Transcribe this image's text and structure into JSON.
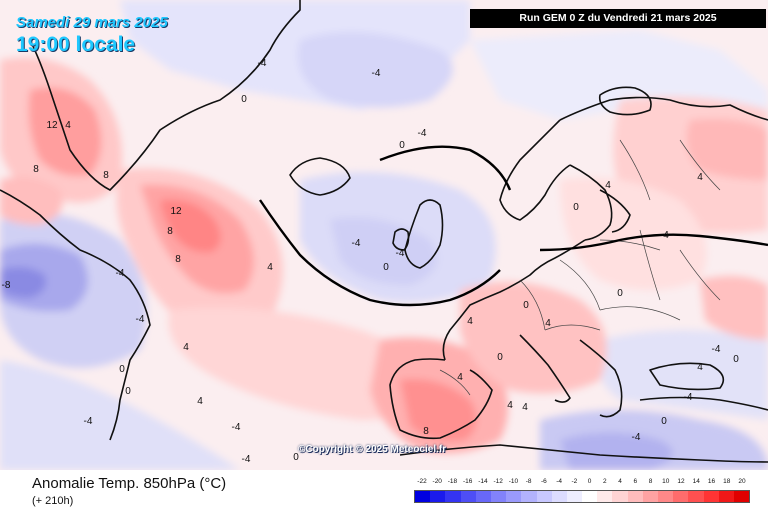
{
  "header": {
    "date": "Samedi 29 mars 2025",
    "time": "19:00 locale",
    "run": "Run GEM 0 Z du Vendredi 21 mars 2025"
  },
  "copyright": "©Copyright © 2025 Meteociel.fr",
  "footer": {
    "title": "Anomalie Temp. 850hPa (°C)",
    "lead_time": "(+ 210h)"
  },
  "legend": {
    "labels": [
      "-22",
      "-20",
      "-18",
      "-16",
      "-14",
      "-12",
      "-10",
      "-8",
      "-6",
      "-4",
      "-2",
      "0",
      "2",
      "4",
      "6",
      "8",
      "10",
      "12",
      "14",
      "16",
      "18",
      "20"
    ],
    "colors": [
      "#0000e0",
      "#1a1aec",
      "#3434f2",
      "#4e4ef5",
      "#6868f8",
      "#8282fa",
      "#9a9afb",
      "#b2b2fd",
      "#c8c8ff",
      "#dcdcff",
      "#eeeeff",
      "#ffffff",
      "#ffeaea",
      "#ffd4d4",
      "#ffbcbc",
      "#ffa2a2",
      "#ff8888",
      "#ff6c6c",
      "#ff5050",
      "#ff3434",
      "#f01818",
      "#e00000"
    ]
  },
  "chart_data": {
    "type": "map",
    "field": "Anomalie Temp. 850hPa (°C)",
    "contour_interval": 4,
    "contour_labels": [
      {
        "region": "south Greenland",
        "value": 12
      },
      {
        "region": "south Greenland",
        "value": 4
      },
      {
        "region": "south Greenland",
        "value": 8
      },
      {
        "region": "Labrador coast",
        "value": 8
      },
      {
        "region": "Irminger Sea",
        "value": 8
      },
      {
        "region": "central North Atlantic",
        "value": 12
      },
      {
        "region": "central North Atlantic",
        "value": 8
      },
      {
        "region": "central North Atlantic",
        "value": 4
      },
      {
        "region": "Labrador",
        "value": -4
      },
      {
        "region": "Labrador",
        "value": -8
      },
      {
        "region": "Newfoundland",
        "value": -4
      },
      {
        "region": "western Atlantic",
        "value": 4
      },
      {
        "region": "western Atlantic",
        "value": 0
      },
      {
        "region": "western Atlantic",
        "value": -4
      },
      {
        "region": "Greenland east coast",
        "value": -4
      },
      {
        "region": "Greenland east coast",
        "value": 0
      },
      {
        "region": "Greenland Sea",
        "value": -4
      },
      {
        "region": "Norwegian Sea",
        "value": 0
      },
      {
        "region": "Svalbard area",
        "value": -4
      },
      {
        "region": "British Isles",
        "value": -4
      },
      {
        "region": "British Isles",
        "value": 0
      },
      {
        "region": "North Sea",
        "value": -4
      },
      {
        "region": "Scandinavia",
        "value": 0
      },
      {
        "region": "Scandinavia",
        "value": 4
      },
      {
        "region": "Baltic",
        "value": 4
      },
      {
        "region": "Western Russia",
        "value": 4
      },
      {
        "region": "Eastern Europe",
        "value": 0
      },
      {
        "region": "Balkans",
        "value": 4
      },
      {
        "region": "Aegean",
        "value": -4
      },
      {
        "region": "Iberia",
        "value": 4
      },
      {
        "region": "Iberia",
        "value": 8
      },
      {
        "region": "North Africa",
        "value": 4
      },
      {
        "region": "Central Mediterranean",
        "value": 0
      },
      {
        "region": "Central Mediterranean",
        "value": 4
      },
      {
        "region": "Eastern Mediterranean",
        "value": -4
      },
      {
        "region": "Eastern Mediterranean",
        "value": 0
      },
      {
        "region": "Azores",
        "value": 4
      },
      {
        "region": "Azores",
        "value": -4
      },
      {
        "region": "Canary Islands",
        "value": -4
      },
      {
        "region": "Canary Islands",
        "value": 0
      },
      {
        "region": "Central Atlantic",
        "value": 0
      },
      {
        "region": "Western Mediterranean",
        "value": 4
      },
      {
        "region": "Western Mediterranean",
        "value": 0
      },
      {
        "region": "Italy",
        "value": 4
      },
      {
        "region": "Turkey",
        "value": -4
      },
      {
        "region": "Turkey",
        "value": 0
      }
    ]
  }
}
